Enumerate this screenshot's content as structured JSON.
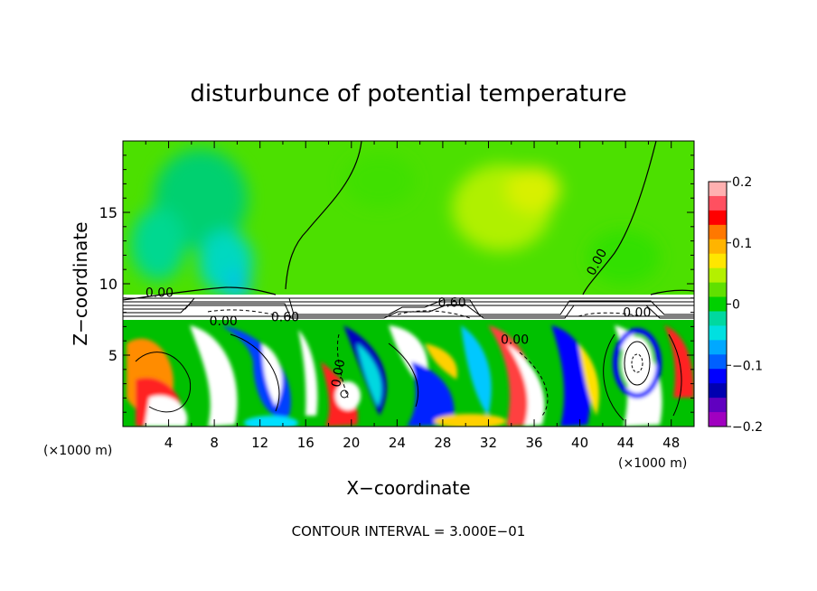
{
  "chart_data": {
    "type": "heatmap",
    "title": "disturbunce of potential temperature",
    "xlabel": "X−coordinate",
    "ylabel": "Z−coordinate",
    "x_unit": "(×1000 m)",
    "z_unit": "(×1000 m)",
    "xlim": [
      0,
      50
    ],
    "ylim": [
      0,
      20
    ],
    "x_ticks": [
      4,
      8,
      12,
      16,
      20,
      24,
      28,
      32,
      36,
      40,
      44,
      48
    ],
    "y_ticks": [
      5,
      10,
      15
    ],
    "colorbar": {
      "min": -0.2,
      "max": 0.2,
      "ticks": [
        0.2,
        0.1,
        0,
        -0.1,
        -0.2
      ],
      "tick_labels": [
        "0.2",
        "0.1",
        "0",
        "−0.1",
        "−0.2"
      ],
      "colors": [
        "#ffb0b0",
        "#ff5060",
        "#ff0000",
        "#ff7800",
        "#ffb400",
        "#ffe600",
        "#b4f000",
        "#60e000",
        "#00d000",
        "#00d8a0",
        "#00e0e0",
        "#00a8ff",
        "#0060ff",
        "#0000ff",
        "#0000b0",
        "#6000c0",
        "#a000c0"
      ]
    },
    "contour_labels": [
      {
        "text": "0.00",
        "x": 3.2,
        "z": 9.4
      },
      {
        "text": "0.00",
        "x": 8.8,
        "z": 7.4
      },
      {
        "text": "0.60",
        "x": 14.2,
        "z": 7.7
      },
      {
        "text": "0.60",
        "x": 28.8,
        "z": 8.7
      },
      {
        "text": "0.00",
        "x": 34.3,
        "z": 6.1
      },
      {
        "text": "0.00",
        "x": 41.8,
        "z": 11.7
      },
      {
        "text": "0.00",
        "x": 45.0,
        "z": 8.0
      },
      {
        "text": "0.00",
        "x": 19.2,
        "z": 4.0
      }
    ],
    "contour_interval_text": "CONTOUR INTERVAL = 3.000E−01"
  }
}
